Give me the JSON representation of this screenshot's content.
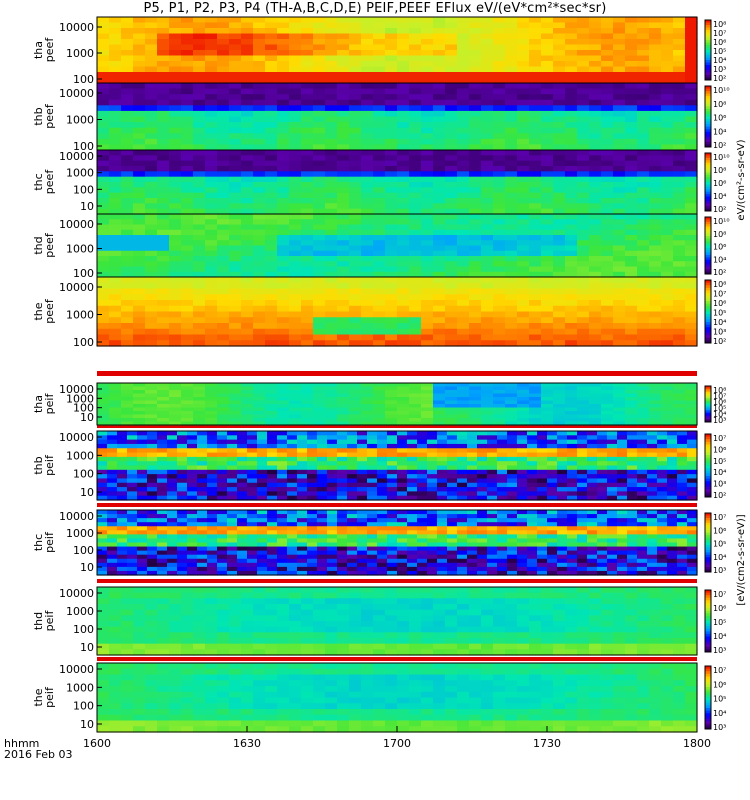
{
  "title_text": "P5, P1, P2, P3, P4 (TH-A,B,C,D,E) PEIF,PEEF EFlux eV/(eV*cm²*sec*sr)",
  "time_axis": {
    "ticks": [
      "1600",
      "1630",
      "1700",
      "1730",
      "1800"
    ],
    "label_line1": "hhmm",
    "label_line2": "2016 Feb 03"
  },
  "colorbar_label_peef": "eV/(cm²-s-sr-eV)",
  "colorbar_label_peif": "[eV/(cm2-s-sr-eV)]",
  "chart_data": [
    {
      "type": "heatmap",
      "panel": "tha peef",
      "ylabel": "tha\npeef",
      "yticks": [
        "10000",
        "1000",
        "100"
      ],
      "yscale": "log",
      "colorbar_ticks": [
        "10⁸",
        "10⁷",
        "10⁶",
        "10⁵",
        "10⁴",
        "10³",
        "10²"
      ]
    },
    {
      "type": "heatmap",
      "panel": "thb peef",
      "ylabel": "thb\npeef",
      "yticks": [
        "10000",
        "1000",
        "100"
      ],
      "yscale": "log",
      "colorbar_ticks": [
        "10¹⁰",
        "10⁸",
        "10⁶",
        "10⁴",
        "10²"
      ]
    },
    {
      "type": "heatmap",
      "panel": "thc peef",
      "ylabel": "thc\npeef",
      "yticks": [
        "10000",
        "1000",
        "100",
        "10"
      ],
      "yscale": "log",
      "colorbar_ticks": [
        "10¹⁰",
        "10⁸",
        "10⁶",
        "10⁴",
        "10²"
      ]
    },
    {
      "type": "heatmap",
      "panel": "thd peef",
      "ylabel": "thd\npeef",
      "yticks": [
        "10000",
        "1000",
        "100"
      ],
      "yscale": "log",
      "colorbar_ticks": [
        "10¹⁰",
        "10⁸",
        "10⁶",
        "10⁴",
        "10²"
      ]
    },
    {
      "type": "heatmap",
      "panel": "the peef",
      "ylabel": "the\npeef",
      "yticks": [
        "10000",
        "1000",
        "100"
      ],
      "yscale": "log",
      "colorbar_ticks": [
        "10⁸",
        "10⁷",
        "10⁶",
        "10⁵",
        "10⁴",
        "10³",
        "10²"
      ]
    },
    {
      "type": "heatmap",
      "panel": "tha peif",
      "ylabel": "tha\npeif",
      "yticks": [
        "10000",
        "1000",
        "100",
        "10"
      ],
      "yscale": "log",
      "colorbar_ticks": [
        "10⁸",
        "10⁷",
        "10⁶",
        "10⁵",
        "10⁴",
        "10³"
      ]
    },
    {
      "type": "heatmap",
      "panel": "thb peif",
      "ylabel": "thb\npeif",
      "yticks": [
        "10000",
        "1000",
        "100",
        "10"
      ],
      "yscale": "log",
      "colorbar_ticks": [
        "10⁷",
        "10⁶",
        "10⁵",
        "10⁴",
        "10³",
        "10²"
      ]
    },
    {
      "type": "heatmap",
      "panel": "thc peif",
      "ylabel": "thc\npeif",
      "yticks": [
        "10000",
        "1000",
        "100",
        "10"
      ],
      "yscale": "log",
      "colorbar_ticks": [
        "10⁷",
        "10⁶",
        "10⁵",
        "10⁴",
        "10³"
      ]
    },
    {
      "type": "heatmap",
      "panel": "thd peif",
      "ylabel": "thd\npeif",
      "yticks": [
        "10000",
        "1000",
        "100",
        "10"
      ],
      "yscale": "log",
      "colorbar_ticks": [
        "10⁷",
        "10⁶",
        "10⁵",
        "10⁴",
        "10³"
      ]
    },
    {
      "type": "heatmap",
      "panel": "the peif",
      "ylabel": "the\npeif",
      "yticks": [
        "10000",
        "1000",
        "100",
        "10"
      ],
      "yscale": "log",
      "colorbar_ticks": [
        "10⁷",
        "10⁶",
        "10⁵",
        "10⁴",
        "10³"
      ]
    }
  ]
}
